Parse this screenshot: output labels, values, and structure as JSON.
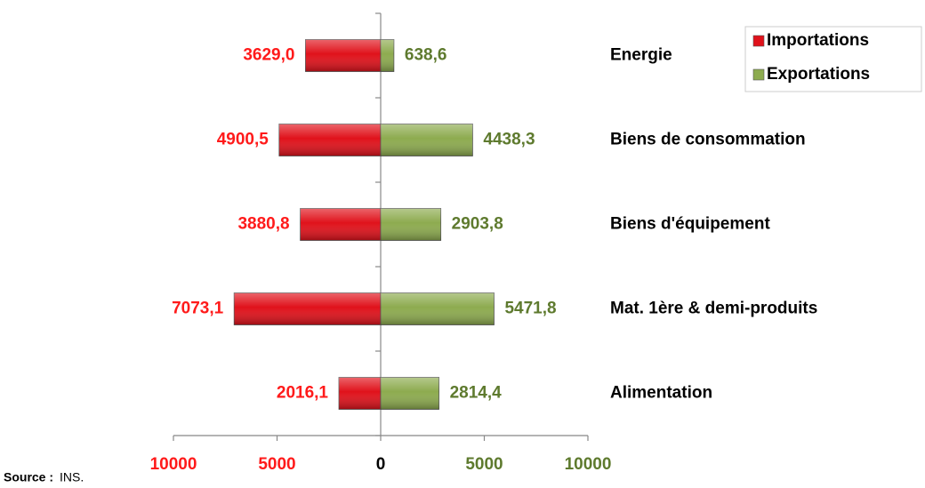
{
  "chart_data": {
    "type": "butterfly",
    "categories": [
      "Energie",
      "Biens de consommation",
      "Biens d'équipement",
      "Mat. 1ère & demi-produits",
      "Alimentation"
    ],
    "series": [
      {
        "name": "Importations",
        "color": "#e0121b",
        "label_color": "#ff1a1a",
        "values": [
          -3629.0,
          -4900.5,
          -3880.8,
          -7073.1,
          -2016.1
        ],
        "value_labels": [
          "3629,0",
          "4900,5",
          "3880,8",
          "7073,1",
          "2016,1"
        ]
      },
      {
        "name": "Exportations",
        "color": "#8dab4f",
        "label_color": "#5e7a2e",
        "values": [
          638.6,
          4438.3,
          2903.8,
          5471.8,
          2814.4
        ],
        "value_labels": [
          "638,6",
          "4438,3",
          "2903,8",
          "5471,8",
          "2814,4"
        ]
      }
    ],
    "xlim": [
      -10000,
      10000
    ],
    "xticks": [
      {
        "value": -10000,
        "label": "10000"
      },
      {
        "value": -5000,
        "label": "5000"
      },
      0,
      5000,
      10000
    ],
    "legend": "top-right",
    "source": {
      "label": "Source :",
      "text": "INS."
    }
  }
}
